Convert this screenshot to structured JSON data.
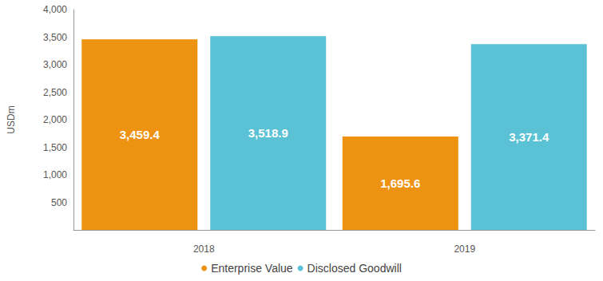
{
  "chart_data": {
    "type": "bar",
    "y_label": "USDm",
    "categories": [
      "2018",
      "2019"
    ],
    "series": [
      {
        "name": "Enterprise Value",
        "color": "#ee9211",
        "values": [
          3459.4,
          1695.6
        ],
        "value_labels": [
          "3,459.4",
          "1,695.6"
        ]
      },
      {
        "name": "Disclosed Goodwill",
        "color": "#5bc2d5",
        "values": [
          3518.9,
          3371.4
        ],
        "value_labels": [
          "3,518.9",
          "3,371.4"
        ]
      }
    ],
    "ylim": [
      0,
      4000
    ],
    "yticks": [
      500,
      {
        "value": 1000,
        "label": "1,000"
      },
      {
        "value": 1500,
        "label": "1,500"
      },
      {
        "value": 2000,
        "label": "2,000"
      },
      {
        "value": 2500,
        "label": "2,500"
      },
      {
        "value": 3000,
        "label": "3,000"
      },
      {
        "value": 3500,
        "label": "3,500"
      },
      {
        "value": 4000,
        "label": "4,000"
      }
    ],
    "grid": false,
    "legend": "bottom",
    "data_labels": true
  }
}
